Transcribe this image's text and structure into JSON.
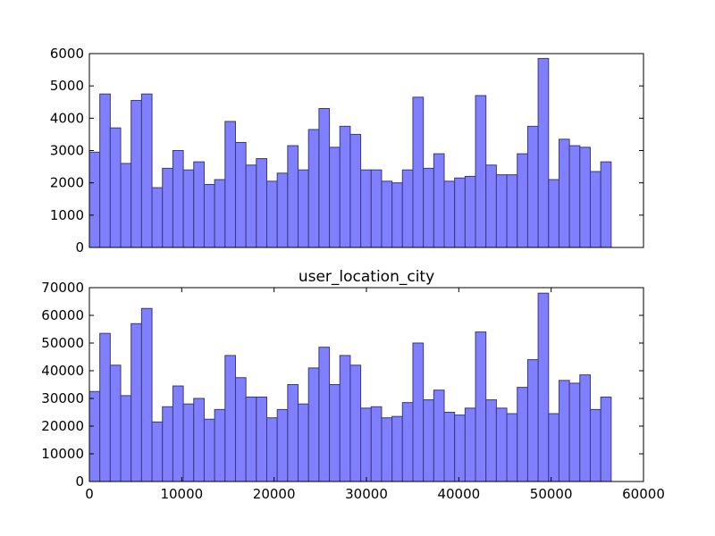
{
  "chart_data": [
    {
      "type": "bar",
      "title": "",
      "xlabel": "",
      "ylabel": "",
      "xlim": [
        0,
        60000
      ],
      "ylim": [
        0,
        6000
      ],
      "yticks": [
        0,
        1000,
        2000,
        3000,
        4000,
        5000,
        6000
      ],
      "ytick_labels": [
        "0",
        "1000",
        "2000",
        "3000",
        "4000",
        "5000",
        "6000"
      ],
      "xticks": [],
      "xtick_labels": [],
      "grid": false,
      "bar_color": "#7f7fff",
      "edge_color": "#3a3a7a",
      "bin_width": 1130,
      "bin_starts": [
        0,
        1130,
        2260,
        3390,
        4520,
        5650,
        6780,
        7910,
        9040,
        10170,
        11300,
        12430,
        13560,
        14690,
        15820,
        16950,
        18080,
        19210,
        20340,
        21470,
        22600,
        23730,
        24860,
        25990,
        27120,
        28250,
        29380,
        30510,
        31640,
        32770,
        33900,
        35030,
        36160,
        37290,
        38420,
        39550,
        40680,
        41810,
        42940,
        44070,
        45200,
        46330,
        47460,
        48590,
        49720,
        50850,
        51980,
        53110,
        54240,
        55370
      ],
      "values": [
        2950,
        4750,
        3700,
        2600,
        4550,
        4750,
        1850,
        2450,
        3000,
        2400,
        2650,
        1950,
        2100,
        3900,
        3250,
        2550,
        2750,
        2050,
        2300,
        3150,
        2400,
        3650,
        4300,
        3100,
        3750,
        3500,
        2400,
        2400,
        2050,
        2000,
        2400,
        4650,
        2450,
        2900,
        2050,
        2150,
        2200,
        4700,
        2550,
        2250,
        2250,
        2900,
        3750,
        5850,
        2100,
        3350,
        3150,
        3100,
        2350,
        2650
      ]
    },
    {
      "type": "bar",
      "title": "user_location_city",
      "xlabel": "",
      "ylabel": "",
      "xlim": [
        0,
        60000
      ],
      "ylim": [
        0,
        70000
      ],
      "yticks": [
        0,
        10000,
        20000,
        30000,
        40000,
        50000,
        60000,
        70000
      ],
      "ytick_labels": [
        "0",
        "10000",
        "20000",
        "30000",
        "40000",
        "50000",
        "60000",
        "70000"
      ],
      "xticks": [
        0,
        10000,
        20000,
        30000,
        40000,
        50000,
        60000
      ],
      "xtick_labels": [
        "0",
        "10000",
        "20000",
        "30000",
        "40000",
        "50000",
        "60000"
      ],
      "grid": false,
      "bar_color": "#7f7fff",
      "edge_color": "#3a3a7a",
      "bin_width": 1130,
      "bin_starts": [
        0,
        1130,
        2260,
        3390,
        4520,
        5650,
        6780,
        7910,
        9040,
        10170,
        11300,
        12430,
        13560,
        14690,
        15820,
        16950,
        18080,
        19210,
        20340,
        21470,
        22600,
        23730,
        24860,
        25990,
        27120,
        28250,
        29380,
        30510,
        31640,
        32770,
        33900,
        35030,
        36160,
        37290,
        38420,
        39550,
        40680,
        41810,
        42940,
        44070,
        45200,
        46330,
        47460,
        48590,
        49720,
        50850,
        51980,
        53110,
        54240,
        55370
      ],
      "values": [
        32500,
        53500,
        42000,
        31000,
        57000,
        62500,
        21500,
        27000,
        34500,
        28000,
        30000,
        22500,
        26000,
        45500,
        37500,
        30500,
        30500,
        23000,
        26000,
        35000,
        28000,
        41000,
        48500,
        35000,
        45500,
        42000,
        26500,
        27000,
        23000,
        23500,
        28500,
        50000,
        29500,
        33000,
        25000,
        24000,
        26500,
        54000,
        29500,
        26500,
        24500,
        34000,
        44000,
        68000,
        24500,
        36500,
        35500,
        38500,
        26000,
        30500
      ]
    }
  ]
}
